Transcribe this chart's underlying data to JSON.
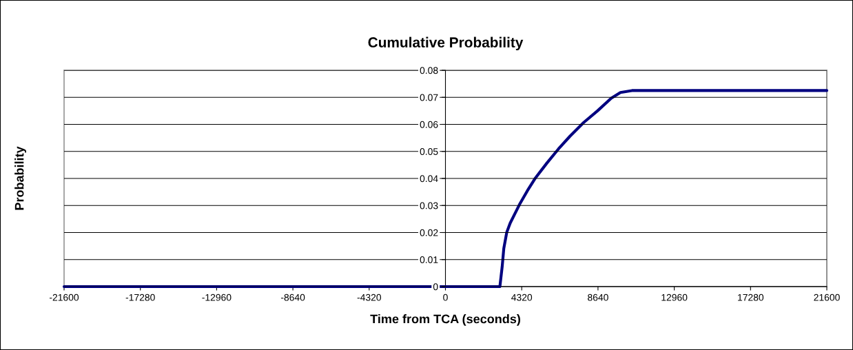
{
  "chart_data": {
    "type": "line",
    "title": "Cumulative Probability",
    "xlabel": "Time from TCA (seconds)",
    "ylabel": "Probability",
    "xlim": [
      -21600,
      21600
    ],
    "xticks": [
      -21600,
      -17280,
      -12960,
      -8640,
      -4320,
      0,
      4320,
      8640,
      12960,
      17280,
      21600
    ],
    "ylim": [
      0,
      0.08
    ],
    "yticks": [
      0,
      0.01,
      0.02,
      0.03,
      0.04,
      0.05,
      0.06,
      0.07,
      0.08
    ],
    "grid": "y",
    "legend": false,
    "marker": "none",
    "line_style": "solid",
    "series": [
      {
        "color": "#000080",
        "x": [
          -21600,
          3083,
          3212,
          3305,
          3473,
          3668,
          3929,
          4189,
          4644,
          5100,
          5748,
          6400,
          7052,
          7832,
          8613,
          9393,
          9912,
          10564,
          11083,
          21600
        ],
        "values": [
          0,
          0,
          0.0073,
          0.0141,
          0.0201,
          0.0235,
          0.0269,
          0.0303,
          0.0355,
          0.0402,
          0.0457,
          0.0509,
          0.0556,
          0.0607,
          0.065,
          0.0697,
          0.0718,
          0.0725,
          0.0725,
          0.0725
        ]
      }
    ]
  }
}
